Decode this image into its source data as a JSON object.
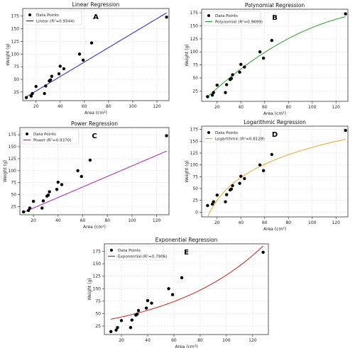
{
  "chart_data": [
    {
      "type": "scatter",
      "panel_label": "A",
      "title": "Linear Regression",
      "xlabel": "Area (cm²)",
      "ylabel": "Weight (g)",
      "xlim": [
        9,
        130
      ],
      "ylim": [
        8,
        190
      ],
      "xticks": [
        20,
        40,
        60,
        80,
        100,
        120
      ],
      "yticks": [
        25,
        50,
        75,
        100,
        125,
        150,
        175
      ],
      "grid": true,
      "legend_position": "top-left",
      "series": [
        {
          "name": "Data Points",
          "kind": "points",
          "x": [
            12,
            16,
            17,
            20,
            27,
            28,
            31,
            32,
            33,
            39,
            40,
            43,
            56,
            59,
            66,
            128
          ],
          "y": [
            14,
            17,
            22,
            36,
            22,
            37,
            47,
            49,
            56,
            61,
            76,
            71,
            100,
            88,
            122,
            173
          ]
        },
        {
          "name": "Linear (R²=0.9344)",
          "kind": "fit",
          "model": "linear",
          "color": "#1f1fd6",
          "coef": [
            -1.6,
            1.43
          ]
        }
      ]
    },
    {
      "type": "scatter",
      "panel_label": "B",
      "title": "Polynomial Regression",
      "xlabel": "Area (cm²)",
      "ylabel": "Weight (g)",
      "xlim": [
        7,
        130
      ],
      "ylim": [
        5,
        182
      ],
      "xticks": [
        20,
        40,
        60,
        80,
        100,
        120
      ],
      "yticks": [
        25,
        50,
        75,
        100,
        125,
        150,
        175
      ],
      "grid": true,
      "legend_position": "top-left",
      "series": [
        {
          "name": "Data Points",
          "kind": "points",
          "x": [
            12,
            16,
            17,
            20,
            27,
            28,
            31,
            32,
            33,
            39,
            40,
            43,
            56,
            59,
            66,
            128
          ],
          "y": [
            14,
            17,
            22,
            36,
            22,
            37,
            47,
            49,
            56,
            61,
            76,
            71,
            100,
            88,
            122,
            173
          ]
        },
        {
          "name": "Polynomial (R²=0.9699)",
          "kind": "fit",
          "model": "poly2",
          "color": "#2a9d2a",
          "coef": [
            -12.2,
            2.25,
            -0.0066
          ]
        }
      ]
    },
    {
      "type": "scatter",
      "panel_label": "C",
      "title": "Power Regression",
      "xlabel": "Area (cm²)",
      "ylabel": "Weight (g)",
      "xlim": [
        9,
        130
      ],
      "ylim": [
        8,
        190
      ],
      "xticks": [
        20,
        40,
        60,
        80,
        100,
        120
      ],
      "yticks": [
        25,
        50,
        75,
        100,
        125,
        150,
        175
      ],
      "grid": true,
      "legend_position": "top-left",
      "series": [
        {
          "name": "Data Points",
          "kind": "points",
          "x": [
            12,
            16,
            17,
            20,
            27,
            28,
            31,
            32,
            33,
            39,
            40,
            43,
            56,
            59,
            66,
            128
          ],
          "y": [
            14,
            17,
            22,
            36,
            22,
            37,
            47,
            49,
            56,
            61,
            76,
            71,
            100,
            88,
            122,
            173
          ]
        },
        {
          "name": "Power (R²=0.9370)",
          "kind": "fit",
          "model": "power",
          "color": "#b01fb0",
          "coef": [
            1.1,
            1.0
          ]
        }
      ]
    },
    {
      "type": "scatter",
      "panel_label": "D",
      "title": "Logarithmic Regression",
      "xlabel": "Area (cm²)",
      "ylabel": "Weight (g)",
      "xlim": [
        7,
        130
      ],
      "ylim": [
        -10,
        182
      ],
      "xticks": [
        20,
        40,
        60,
        80,
        100,
        120
      ],
      "yticks": [
        0,
        25,
        50,
        75,
        100,
        125,
        150,
        175
      ],
      "grid": true,
      "legend_position": "top-left",
      "series": [
        {
          "name": "Data Points",
          "kind": "points",
          "x": [
            12,
            16,
            17,
            20,
            27,
            28,
            31,
            32,
            33,
            39,
            40,
            43,
            56,
            59,
            66,
            128
          ],
          "y": [
            14,
            17,
            22,
            36,
            22,
            37,
            47,
            49,
            56,
            61,
            76,
            71,
            100,
            88,
            122,
            173
          ]
        },
        {
          "name": "Logarithmic (R²=0.8129)",
          "kind": "fit",
          "model": "log",
          "color": "#f5a623",
          "coef": [
            -183,
            69.5
          ]
        }
      ]
    },
    {
      "type": "scatter",
      "panel_label": "E",
      "title": "Exponential Regression",
      "xlabel": "Area (cm²)",
      "ylabel": "Weight (g)",
      "xlim": [
        7,
        132
      ],
      "ylim": [
        8,
        190
      ],
      "xticks": [
        20,
        40,
        60,
        80,
        100,
        120
      ],
      "yticks": [
        25,
        50,
        75,
        100,
        125,
        150,
        175
      ],
      "grid": true,
      "legend_position": "top-left",
      "series": [
        {
          "name": "Data Points",
          "kind": "points",
          "x": [
            12,
            16,
            17,
            20,
            27,
            28,
            31,
            32,
            33,
            39,
            40,
            43,
            56,
            59,
            66,
            128
          ],
          "y": [
            14,
            17,
            22,
            36,
            22,
            37,
            47,
            49,
            56,
            61,
            76,
            71,
            100,
            88,
            122,
            173
          ]
        },
        {
          "name": "Exponential (R²=0.7906)",
          "kind": "fit",
          "model": "exp",
          "color": "#c8201c",
          "coef": [
            33,
            0.0135
          ]
        }
      ]
    }
  ]
}
